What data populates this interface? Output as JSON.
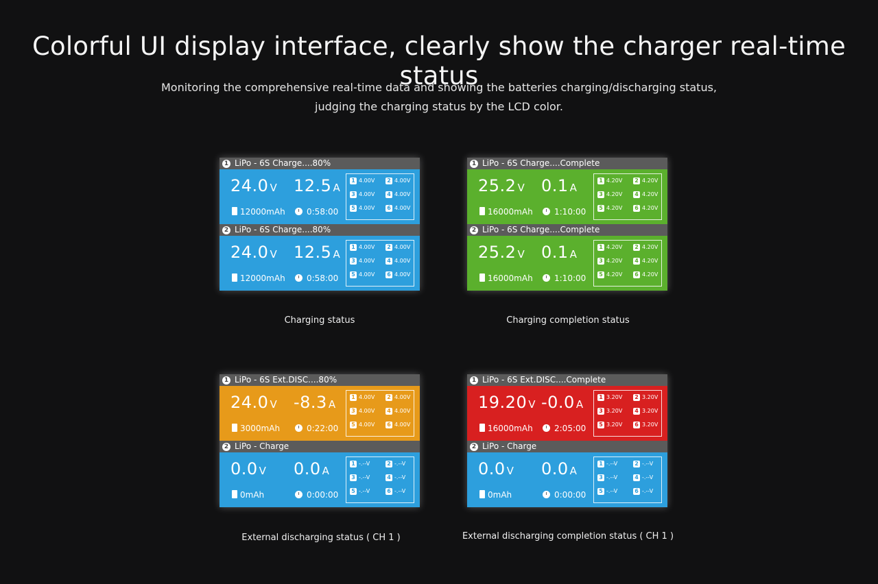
{
  "headline": "Colorful UI display interface, clearly show the charger real-time status",
  "subtitle_line1": "Monitoring the comprehensive real-time data and showing the batteries charging/discharging status,",
  "subtitle_line2": "judging the charging status by the LCD color.",
  "screens": [
    {
      "caption": "Charging status",
      "channels": [
        {
          "num": "1",
          "title": "LiPo - 6S Charge....80%",
          "color": "#2d9fdd",
          "voltage": "24.0",
          "voltage_unit": "V",
          "current": "12.5",
          "current_unit": "A",
          "capacity": "12000mAh",
          "time": "0:58:00",
          "cells": [
            {
              "n": "1",
              "v": "4.00V"
            },
            {
              "n": "2",
              "v": "4.00V"
            },
            {
              "n": "3",
              "v": "4.00V"
            },
            {
              "n": "4",
              "v": "4.00V"
            },
            {
              "n": "5",
              "v": "4.00V"
            },
            {
              "n": "6",
              "v": "4.00V"
            }
          ]
        },
        {
          "num": "2",
          "title": "LiPo - 6S Charge....80%",
          "color": "#2d9fdd",
          "voltage": "24.0",
          "voltage_unit": "V",
          "current": "12.5",
          "current_unit": "A",
          "capacity": "12000mAh",
          "time": "0:58:00",
          "cells": [
            {
              "n": "1",
              "v": "4.00V"
            },
            {
              "n": "2",
              "v": "4.00V"
            },
            {
              "n": "3",
              "v": "4.00V"
            },
            {
              "n": "4",
              "v": "4.00V"
            },
            {
              "n": "5",
              "v": "4.00V"
            },
            {
              "n": "6",
              "v": "4.00V"
            }
          ]
        }
      ]
    },
    {
      "caption": "Charging completion status",
      "channels": [
        {
          "num": "1",
          "title": "LiPo - 6S Charge....Complete",
          "color": "#5bb02d",
          "voltage": "25.2",
          "voltage_unit": "V",
          "current": "0.1",
          "current_unit": "A",
          "capacity": "16000mAh",
          "time": "1:10:00",
          "cells": [
            {
              "n": "1",
              "v": "4.20V"
            },
            {
              "n": "2",
              "v": "4.20V"
            },
            {
              "n": "3",
              "v": "4.20V"
            },
            {
              "n": "4",
              "v": "4.20V"
            },
            {
              "n": "5",
              "v": "4.20V"
            },
            {
              "n": "6",
              "v": "4.20V"
            }
          ]
        },
        {
          "num": "2",
          "title": "LiPo - 6S Charge....Complete",
          "color": "#5bb02d",
          "voltage": "25.2",
          "voltage_unit": "V",
          "current": "0.1",
          "current_unit": "A",
          "capacity": "16000mAh",
          "time": "1:10:00",
          "cells": [
            {
              "n": "1",
              "v": "4.20V"
            },
            {
              "n": "2",
              "v": "4.20V"
            },
            {
              "n": "3",
              "v": "4.20V"
            },
            {
              "n": "4",
              "v": "4.20V"
            },
            {
              "n": "5",
              "v": "4.20V"
            },
            {
              "n": "6",
              "v": "4.20V"
            }
          ]
        }
      ]
    },
    {
      "caption": "External discharging status ( CH 1 )",
      "channels": [
        {
          "num": "1",
          "title": "LiPo - 6S Ext.DISC....80%",
          "color": "#e79a1a",
          "voltage": "24.0",
          "voltage_unit": "V",
          "current": "-8.3",
          "current_unit": "A",
          "capacity": "3000mAh",
          "time": "0:22:00",
          "cells": [
            {
              "n": "1",
              "v": "4.00V"
            },
            {
              "n": "2",
              "v": "4.00V"
            },
            {
              "n": "3",
              "v": "4.00V"
            },
            {
              "n": "4",
              "v": "4.00V"
            },
            {
              "n": "5",
              "v": "4.00V"
            },
            {
              "n": "6",
              "v": "4.00V"
            }
          ]
        },
        {
          "num": "2",
          "title": "LiPo -  Charge",
          "color": "#2d9fdd",
          "voltage": "0.0",
          "voltage_unit": "V",
          "current": "0.0",
          "current_unit": "A",
          "capacity": "0mAh",
          "time": "0:00:00",
          "cells": [
            {
              "n": "1",
              "v": "-.--V"
            },
            {
              "n": "2",
              "v": "-.--V"
            },
            {
              "n": "3",
              "v": "-.--V"
            },
            {
              "n": "4",
              "v": "-.--V"
            },
            {
              "n": "5",
              "v": "-.--V"
            },
            {
              "n": "6",
              "v": "-.--V"
            }
          ]
        }
      ]
    },
    {
      "caption": "External discharging completion status ( CH 1 )",
      "channels": [
        {
          "num": "1",
          "title": "LiPo - 6S Ext.DISC....Complete",
          "color": "#d82020",
          "voltage": "19.20",
          "voltage_unit": "V",
          "current": "-0.0",
          "current_unit": "A",
          "capacity": "16000mAh",
          "time": "2:05:00",
          "cells": [
            {
              "n": "1",
              "v": "3.20V"
            },
            {
              "n": "2",
              "v": "3.20V"
            },
            {
              "n": "3",
              "v": "3.20V"
            },
            {
              "n": "4",
              "v": "3.20V"
            },
            {
              "n": "5",
              "v": "3.20V"
            },
            {
              "n": "6",
              "v": "3.20V"
            }
          ]
        },
        {
          "num": "2",
          "title": "LiPo -  Charge",
          "color": "#2d9fdd",
          "voltage": "0.0",
          "voltage_unit": "V",
          "current": "0.0",
          "current_unit": "A",
          "capacity": "0mAh",
          "time": "0:00:00",
          "cells": [
            {
              "n": "1",
              "v": "-.--V"
            },
            {
              "n": "2",
              "v": "-.--V"
            },
            {
              "n": "3",
              "v": "-.--V"
            },
            {
              "n": "4",
              "v": "-.--V"
            },
            {
              "n": "5",
              "v": "-.--V"
            },
            {
              "n": "6",
              "v": "-.--V"
            }
          ]
        }
      ]
    }
  ]
}
